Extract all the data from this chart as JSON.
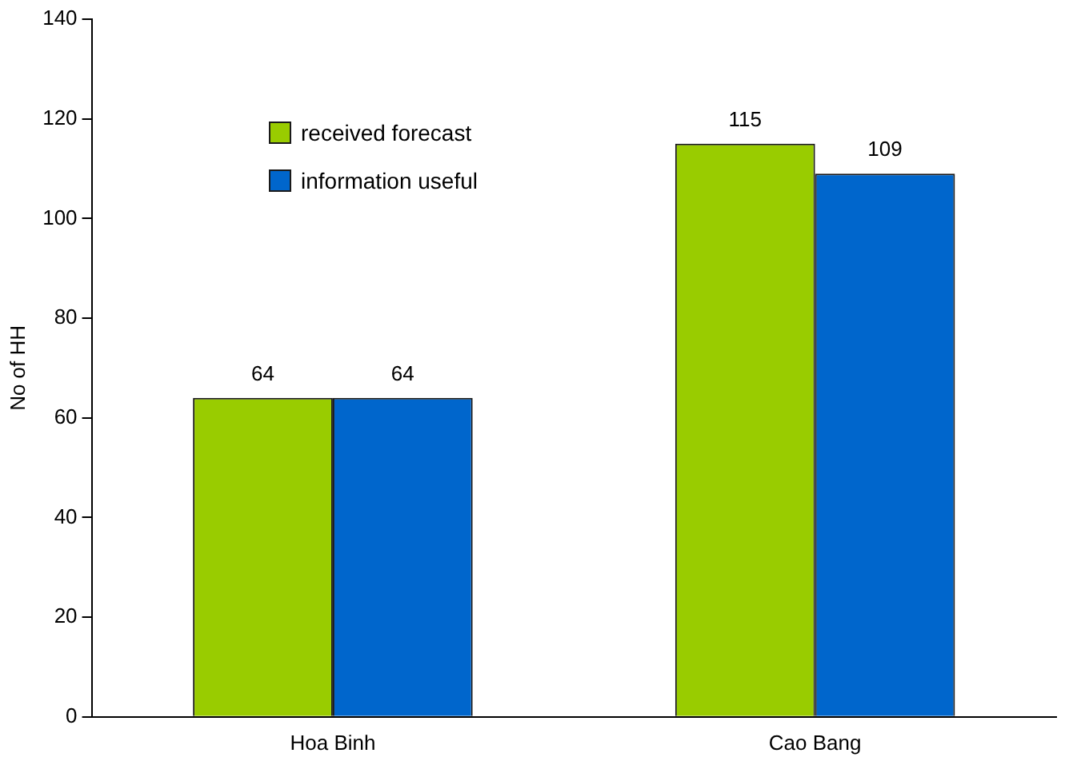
{
  "chart_data": {
    "type": "bar",
    "ylabel": "No of HH",
    "categories": [
      "Hoa Binh",
      "Cao Bang"
    ],
    "series": [
      {
        "name": "received forecast",
        "color": "#99cc00",
        "values": [
          64,
          115
        ]
      },
      {
        "name": "information useful",
        "color": "#0066cc",
        "values": [
          64,
          109
        ]
      }
    ],
    "ylim": [
      0,
      140
    ],
    "yticks": [
      0,
      20,
      40,
      60,
      80,
      100,
      120,
      140
    ],
    "grid": false,
    "legend": "top left",
    "data_labels": true
  }
}
